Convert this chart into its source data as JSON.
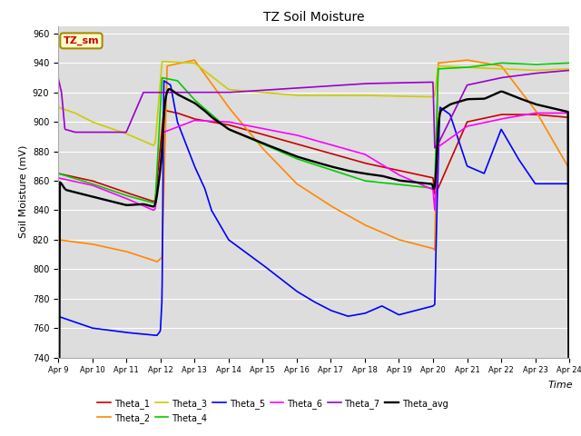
{
  "title": "TZ Soil Moisture",
  "ylabel": "Soil Moisture (mV)",
  "xlabel": "Time",
  "ylim": [
    740,
    965
  ],
  "yticks": [
    740,
    760,
    780,
    800,
    820,
    840,
    860,
    880,
    900,
    920,
    940,
    960
  ],
  "date_labels": [
    "Apr 9",
    "Apr 10",
    "Apr 11",
    "Apr 12",
    "Apr 13",
    "Apr 14",
    "Apr 15",
    "Apr 16",
    "Apr 17",
    "Apr 18",
    "Apr 19",
    "Apr 20",
    "Apr 21",
    "Apr 22",
    "Apr 23",
    "Apr 24"
  ],
  "legend_label": "TZ_sm",
  "colors": {
    "Theta_1": "#cc0000",
    "Theta_2": "#ff8800",
    "Theta_3": "#cccc00",
    "Theta_4": "#00cc00",
    "Theta_5": "#0000ff",
    "Theta_6": "#ff00ff",
    "Theta_7": "#9900cc",
    "Theta_avg": "#000000"
  },
  "fig_width": 6.4,
  "fig_height": 4.8,
  "dpi": 100,
  "background_color": "#ffffff",
  "plot_bg": "#dddddd",
  "grid_color": "#ffffff",
  "title_fontsize": 10,
  "axis_fontsize": 8,
  "tick_fontsize": 7,
  "legend_fontsize": 8
}
